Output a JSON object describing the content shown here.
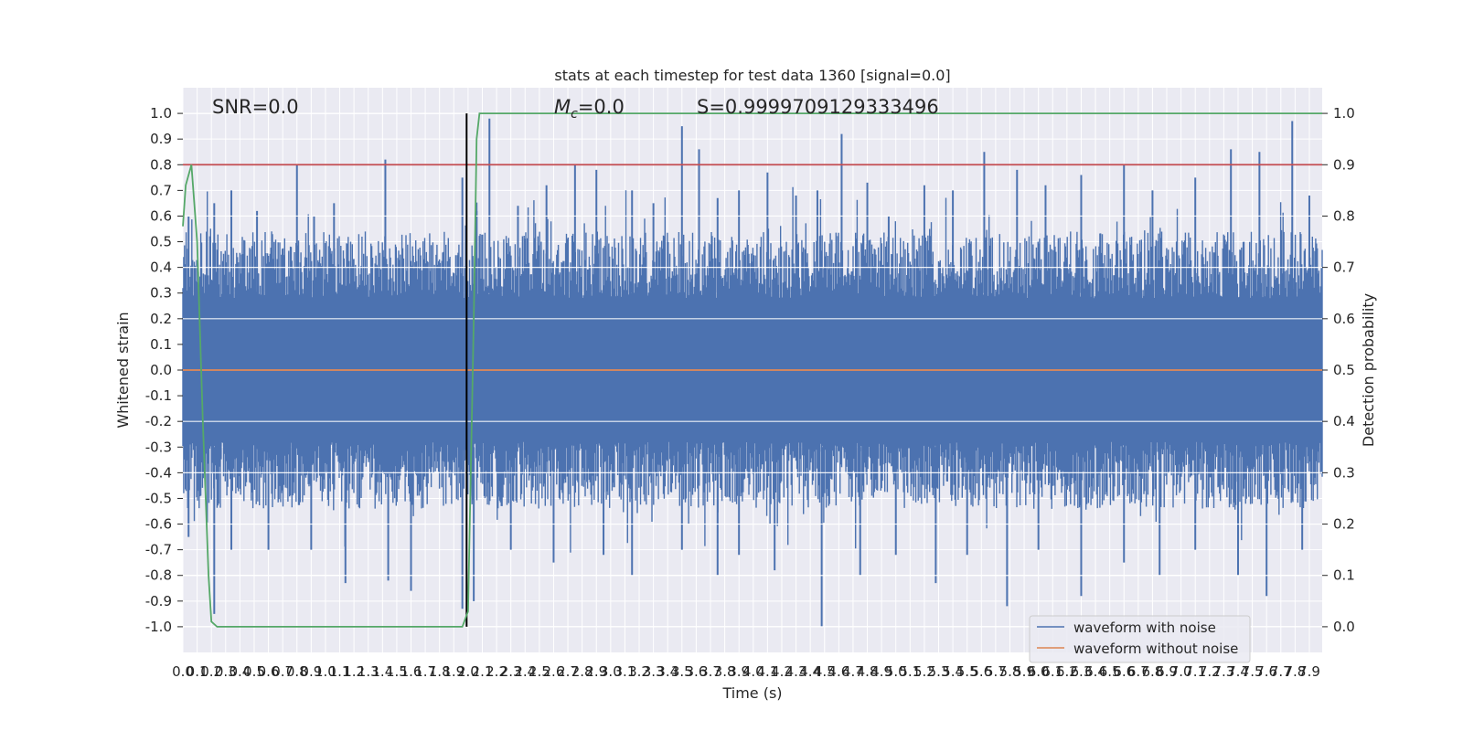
{
  "chart_data": {
    "type": "line",
    "title": "stats at each timestep for test data 1360 [signal=0.0]",
    "xlabel": "Time (s)",
    "ylabel": "Whitened strain",
    "y2label": "Detection probability",
    "xlim": [
      0.0,
      7.99
    ],
    "ylim": [
      -1.1,
      1.1
    ],
    "y2lim": [
      -0.05,
      1.05
    ],
    "grid": true,
    "legend_position": "lower-right",
    "x_ticks": [
      "0.0",
      "0.1",
      "0.2",
      "0.3",
      "0.4",
      "0.5",
      "0.6",
      "0.7",
      "0.8",
      "0.9",
      "1.0",
      "1.1",
      "1.2",
      "1.3",
      "1.4",
      "1.5",
      "1.6",
      "1.7",
      "1.8",
      "1.9",
      "2.0",
      "2.1",
      "2.2",
      "2.3",
      "2.4",
      "2.5",
      "2.6",
      "2.7",
      "2.8",
      "2.9",
      "3.0",
      "3.1",
      "3.2",
      "3.3",
      "3.4",
      "3.5",
      "3.6",
      "3.7",
      "3.8",
      "3.9",
      "4.0",
      "4.1",
      "4.2",
      "4.3",
      "4.4",
      "4.5",
      "4.6",
      "4.7",
      "4.8",
      "4.9",
      "5.0",
      "5.1",
      "5.2",
      "5.3",
      "5.4",
      "5.5",
      "5.6",
      "5.7",
      "5.8",
      "5.9",
      "6.0",
      "6.1",
      "6.2",
      "6.3",
      "6.4",
      "6.5",
      "6.6",
      "6.7",
      "6.8",
      "6.9",
      "7.0",
      "7.1",
      "7.2",
      "7.3",
      "7.4",
      "7.5",
      "7.6",
      "7.7",
      "7.8",
      "7.9"
    ],
    "y_ticks": [
      "1.0",
      "0.9",
      "0.8",
      "0.7",
      "0.6",
      "0.5",
      "0.4",
      "0.3",
      "0.2",
      "0.1",
      "0.0",
      "-0.1",
      "-0.2",
      "-0.3",
      "-0.4",
      "-0.5",
      "-0.6",
      "-0.7",
      "-0.8",
      "-0.9",
      "-1.0"
    ],
    "y2_ticks": [
      "1.0",
      "0.9",
      "0.8",
      "0.7",
      "0.6",
      "0.5",
      "0.4",
      "0.3",
      "0.2",
      "0.1",
      "0.0"
    ],
    "annotations": {
      "snr": "SNR=0.0",
      "mc_symbol": "M",
      "mc_sub": "c",
      "mc_value": "=0.0",
      "s": "S=0.9999709129333496"
    },
    "series": [
      {
        "name": "waveform with noise",
        "color": "#4c72b0",
        "axis": "left",
        "description_values": "dense noise, envelope approx ±0.5 with peaks to ±1.0",
        "peaks_x": [
          0.04,
          0.22,
          0.34,
          0.52,
          0.8,
          0.92,
          1.06,
          1.42,
          1.96,
          2.06,
          2.15,
          2.35,
          2.55,
          2.75,
          2.9,
          3.15,
          3.3,
          3.5,
          3.62,
          3.75,
          3.9,
          4.1,
          4.3,
          4.45,
          4.62,
          4.8,
          4.95,
          5.2,
          5.4,
          5.62,
          5.85,
          6.05,
          6.3,
          6.6,
          6.8,
          7.1,
          7.35,
          7.55,
          7.78,
          7.9
        ],
        "peaks_y": [
          0.6,
          0.65,
          0.7,
          0.62,
          0.8,
          0.6,
          0.65,
          0.82,
          0.75,
          0.62,
          0.98,
          0.64,
          0.72,
          0.8,
          0.78,
          0.7,
          0.65,
          0.95,
          0.86,
          0.67,
          0.7,
          0.77,
          0.68,
          0.7,
          0.92,
          0.73,
          0.6,
          0.72,
          0.7,
          0.85,
          0.78,
          0.72,
          0.76,
          0.8,
          0.7,
          0.75,
          0.86,
          0.85,
          0.97,
          0.68
        ],
        "troughs_x": [
          0.04,
          0.22,
          0.34,
          0.6,
          0.9,
          1.14,
          1.44,
          1.6,
          1.96,
          2.04,
          2.3,
          2.6,
          2.95,
          3.15,
          3.5,
          3.75,
          3.9,
          4.15,
          4.48,
          4.75,
          5.0,
          5.28,
          5.5,
          5.78,
          6.0,
          6.3,
          6.6,
          6.85,
          7.1,
          7.4,
          7.6,
          7.85
        ],
        "troughs_y": [
          -0.65,
          -0.95,
          -0.7,
          -0.7,
          -0.7,
          -0.83,
          -0.82,
          -0.86,
          -0.93,
          -0.9,
          -0.7,
          -0.75,
          -0.72,
          -0.8,
          -0.7,
          -0.8,
          -0.72,
          -0.78,
          -1.0,
          -0.8,
          -0.72,
          -0.83,
          -0.72,
          -0.92,
          -0.7,
          -0.88,
          -0.75,
          -0.8,
          -0.7,
          -0.8,
          -0.88,
          -0.7
        ]
      },
      {
        "name": "waveform without noise",
        "color": "#dd8452",
        "axis": "left",
        "x": [
          0.0,
          7.99
        ],
        "y": [
          0.0,
          0.0
        ]
      },
      {
        "name": "",
        "color": "#55a868",
        "axis": "right",
        "x": [
          0.0,
          0.02,
          0.06,
          0.1,
          0.14,
          0.18,
          0.2,
          0.24,
          0.28,
          1.9,
          1.96,
          2.0,
          2.04,
          2.06,
          2.08,
          2.1,
          7.99
        ],
        "y": [
          0.78,
          0.86,
          0.9,
          0.75,
          0.4,
          0.1,
          0.01,
          0.0,
          0.0,
          0.0,
          0.0,
          0.03,
          0.6,
          0.95,
          1.0,
          1.0,
          1.0
        ]
      }
    ],
    "threshold": {
      "value": 0.9,
      "axis": "right",
      "color": "#c44e52"
    },
    "marker_line": {
      "x": 1.99,
      "color": "#000000"
    }
  }
}
